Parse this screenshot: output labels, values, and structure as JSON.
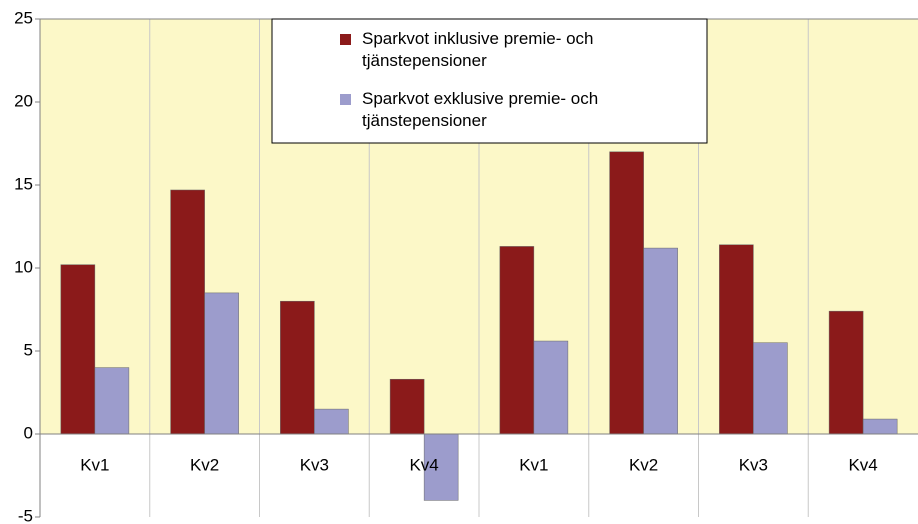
{
  "chart_data": {
    "type": "bar",
    "categories": [
      "Kv1",
      "Kv2",
      "Kv3",
      "Kv4",
      "Kv1",
      "Kv2",
      "Kv3",
      "Kv4"
    ],
    "series": [
      {
        "name": "Sparkvot inklusive premie- och tjänstepensioner",
        "color": "#8b1a1a",
        "values": [
          10.2,
          14.7,
          8.0,
          3.3,
          11.3,
          17.0,
          11.4,
          7.4
        ]
      },
      {
        "name": "Sparkvot exklusive premie- och tjänstepensioner",
        "color": "#9c9ccc",
        "values": [
          4.0,
          8.5,
          1.5,
          -4.0,
          5.6,
          11.2,
          5.5,
          0.9
        ]
      }
    ],
    "ylim": [
      -5,
      25
    ],
    "yticks": [
      -5,
      0,
      5,
      10,
      15,
      20,
      25
    ],
    "grid": true,
    "plot_color": "#fcf8c8"
  }
}
